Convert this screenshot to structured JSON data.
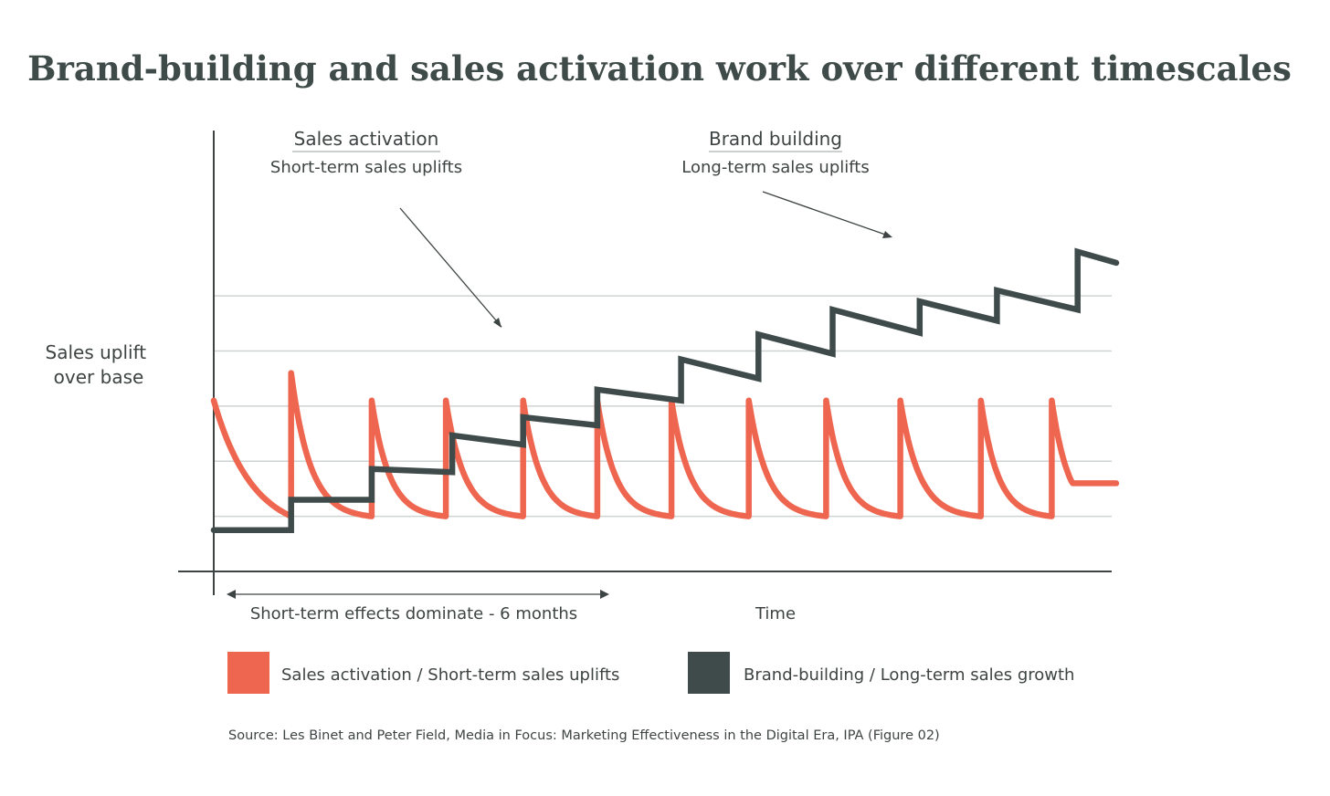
{
  "chart_data": {
    "type": "line",
    "title": "Brand-building and sales activation work over different timescales",
    "xlabel": "Time",
    "ylabel_lines": [
      "Sales uplift",
      "over base"
    ],
    "grid": true,
    "legend_position": "bottom",
    "colors": {
      "sales_activation": "#ee6650",
      "brand_building": "#3f4b4a",
      "axis": "#3e4443",
      "grid": "#cfd3d2",
      "title": "#3f4b49"
    },
    "annotations": {
      "sales_activation": {
        "heading": "Sales activation",
        "subheading": "Short-term sales uplifts"
      },
      "brand_building": {
        "heading": "Brand building",
        "subheading": "Long-term sales uplifts"
      },
      "short_term_span": {
        "label": "Short-term effects dominate - 6 months",
        "x_range": [
          0,
          6
        ]
      }
    },
    "legend": [
      {
        "label": "Sales activation / Short-term sales uplifts",
        "series": "sales_activation"
      },
      {
        "label": "Brand-building / Long-term sales growth",
        "series": "brand_building"
      }
    ],
    "xlim": [
      0,
      14
    ],
    "ylim": [
      0,
      8
    ],
    "series": {
      "sales_activation": {
        "base": 1,
        "start_value": 3.1,
        "end_value": 1.6,
        "spikes": [
          {
            "x": 1.2,
            "peak": 3.6
          },
          {
            "x": 2.45,
            "peak": 3.1
          },
          {
            "x": 3.6,
            "peak": 3.1
          },
          {
            "x": 4.8,
            "peak": 3.1
          },
          {
            "x": 5.95,
            "peak": 3.1
          },
          {
            "x": 7.1,
            "peak": 3.1
          },
          {
            "x": 8.3,
            "peak": 3.1
          },
          {
            "x": 9.5,
            "peak": 3.1
          },
          {
            "x": 10.65,
            "peak": 3.1
          },
          {
            "x": 11.9,
            "peak": 3.1
          },
          {
            "x": 13.0,
            "peak": 3.1
          }
        ]
      },
      "brand_building": {
        "steps": [
          {
            "x0": 0.0,
            "x1": 1.2,
            "y0": 0.75,
            "y1": 0.75
          },
          {
            "x0": 1.2,
            "x1": 2.45,
            "y0": 1.3,
            "y1": 1.3
          },
          {
            "x0": 2.45,
            "x1": 3.7,
            "y0": 1.86,
            "y1": 1.8
          },
          {
            "x0": 3.7,
            "x1": 4.8,
            "y0": 2.47,
            "y1": 2.3
          },
          {
            "x0": 4.8,
            "x1": 5.95,
            "y0": 2.8,
            "y1": 2.65
          },
          {
            "x0": 5.95,
            "x1": 7.25,
            "y0": 3.3,
            "y1": 3.1
          },
          {
            "x0": 7.25,
            "x1": 8.45,
            "y0": 3.85,
            "y1": 3.5
          },
          {
            "x0": 8.45,
            "x1": 9.6,
            "y0": 4.3,
            "y1": 3.95
          },
          {
            "x0": 9.6,
            "x1": 10.95,
            "y0": 4.75,
            "y1": 4.33
          },
          {
            "x0": 10.95,
            "x1": 12.15,
            "y0": 4.9,
            "y1": 4.55
          },
          {
            "x0": 12.15,
            "x1": 13.4,
            "y0": 5.1,
            "y1": 4.75
          },
          {
            "x0": 13.4,
            "x1": 14.0,
            "y0": 5.8,
            "y1": 5.6
          }
        ]
      }
    },
    "source": "Source: Les Binet and Peter Field, Media in Focus: Marketing Effectiveness in the Digital Era, IPA (Figure 02)"
  }
}
